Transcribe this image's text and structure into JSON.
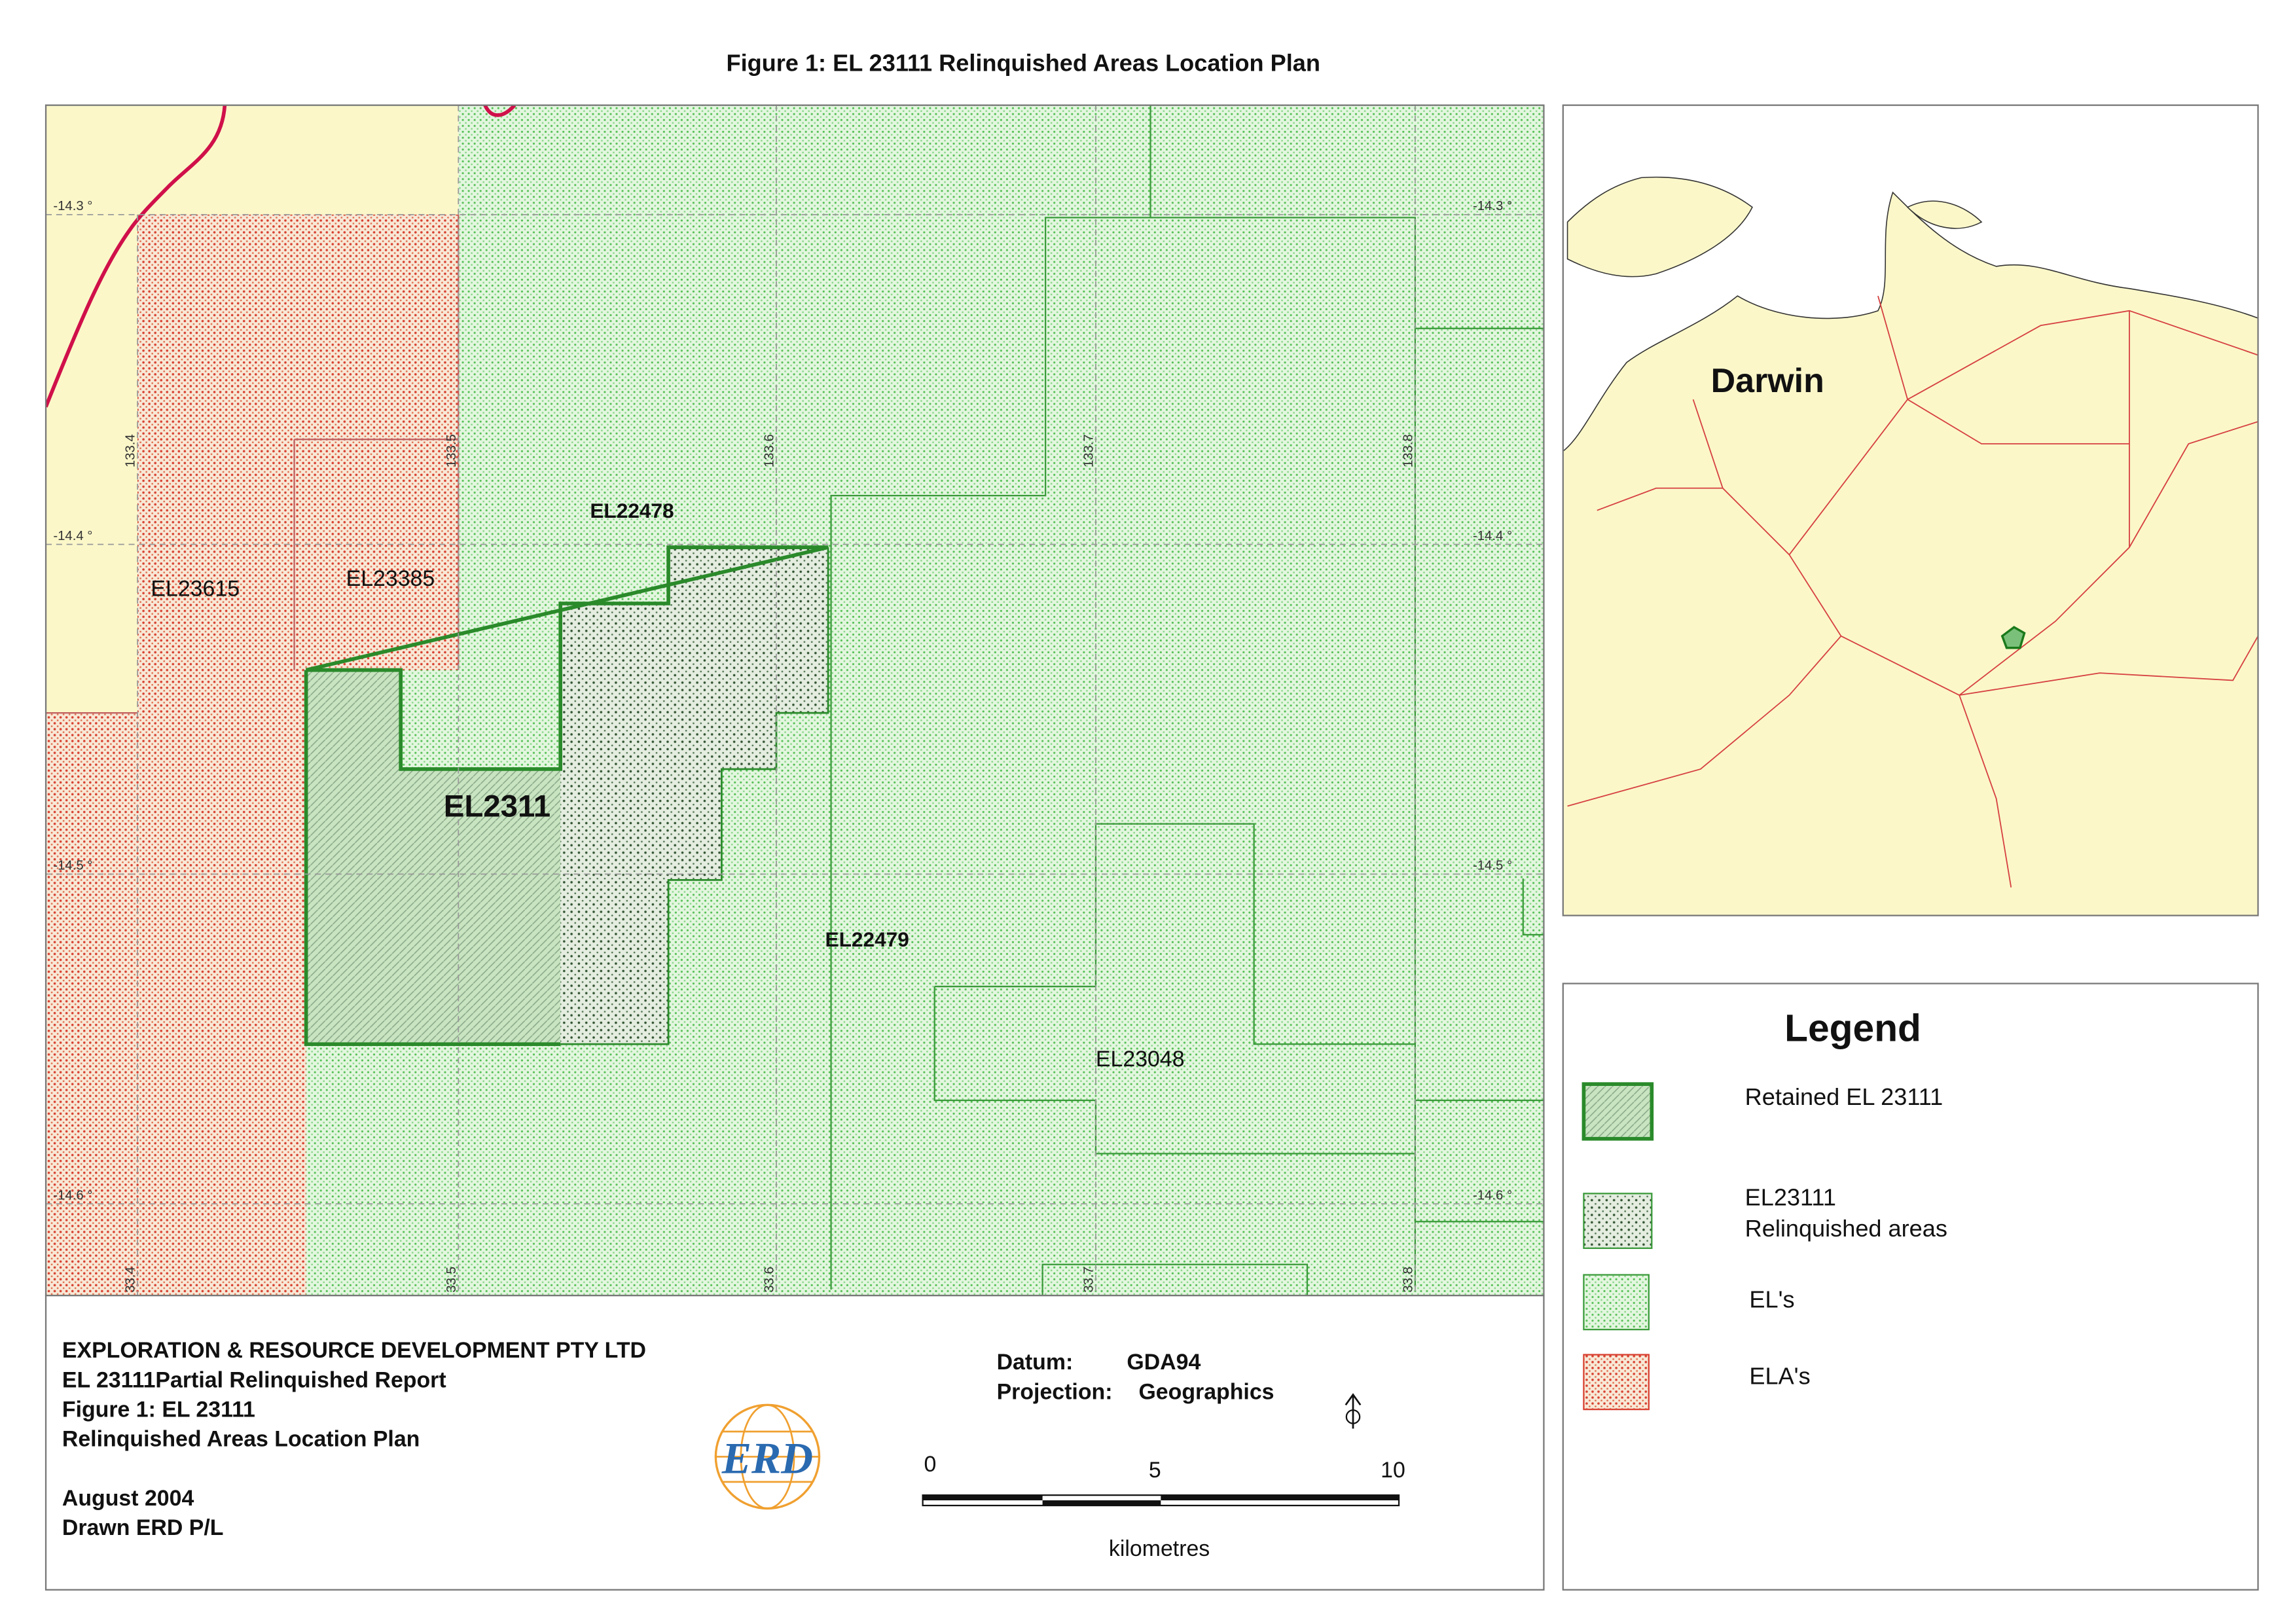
{
  "title": "Figure 1:  EL 23111 Relinquished Areas Location Plan",
  "map": {
    "labels": [
      "EL22478",
      "EL23615",
      "EL23385",
      "EL2311",
      "EL22479",
      "EL23048"
    ],
    "lat_labels": [
      "-14.3 °",
      "-14.4 °",
      "-14.5 °",
      "-14.6 °"
    ],
    "lon_labels_top": [
      "133.4",
      "133.5",
      "133.6",
      "133.7",
      "133.8"
    ],
    "lon_labels_bottom": [
      "33.4",
      "33.5",
      "33.6",
      "33.7",
      "33.8"
    ]
  },
  "inset": {
    "label": "Darwin"
  },
  "legend": {
    "title": "Legend",
    "items": [
      [
        "Retained EL 23111"
      ],
      [
        "EL23111",
        "Relinquished areas"
      ],
      [
        "EL's"
      ],
      [
        "ELA's"
      ]
    ]
  },
  "footer": {
    "company": "EXPLORATION & RESOURCE DEVELOPMENT PTY LTD",
    "lines": [
      "EL 23111Partial Relinquished Report",
      "Figure 1:  EL 23111",
      "Relinquished Areas Location Plan"
    ],
    "date": "August 2004",
    "drawn": "Drawn ERD P/L",
    "logo": "ERD",
    "datum_label": "Datum:",
    "datum": "GDA94",
    "projection_label": "Projection:",
    "projection": "Geographics",
    "scale_labels": [
      "0",
      "5",
      "10"
    ],
    "scale_unit": "kilometres"
  }
}
